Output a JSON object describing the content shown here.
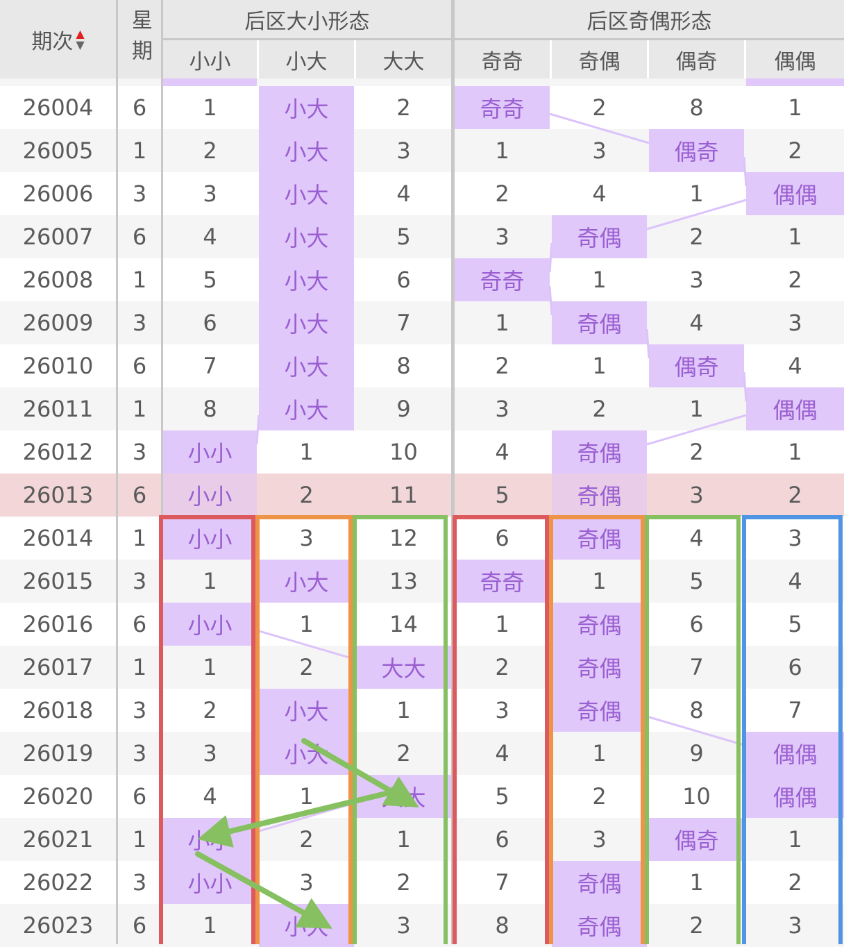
{
  "header": {
    "issue": "期次",
    "weekday": "星期",
    "size_group": "后区大小形态",
    "parity_group": "后区奇偶形态",
    "columns": [
      "小小",
      "小大",
      "大大",
      "奇奇",
      "奇偶",
      "偶奇",
      "偶偶"
    ],
    "sort_icon": "sort-up-down-icon"
  },
  "colors": {
    "highlight_bg": "#e1c8fb",
    "highlight_text": "#9a5fd0",
    "selected_row": "#f2d6d8",
    "red": "#dc5a5e",
    "orange": "#ee9448",
    "green": "#86c060",
    "blue": "#4f95e3"
  },
  "rows": [
    {
      "issue": "26004",
      "day": "6",
      "cells": [
        "1",
        "小大",
        "2",
        "奇奇",
        "2",
        "8",
        "1"
      ]
    },
    {
      "issue": "26005",
      "day": "1",
      "cells": [
        "2",
        "小大",
        "3",
        "1",
        "3",
        "偶奇",
        "2"
      ]
    },
    {
      "issue": "26006",
      "day": "3",
      "cells": [
        "3",
        "小大",
        "4",
        "2",
        "4",
        "1",
        "偶偶"
      ]
    },
    {
      "issue": "26007",
      "day": "6",
      "cells": [
        "4",
        "小大",
        "5",
        "3",
        "奇偶",
        "2",
        "1"
      ]
    },
    {
      "issue": "26008",
      "day": "1",
      "cells": [
        "5",
        "小大",
        "6",
        "奇奇",
        "1",
        "3",
        "2"
      ]
    },
    {
      "issue": "26009",
      "day": "3",
      "cells": [
        "6",
        "小大",
        "7",
        "1",
        "奇偶",
        "4",
        "3"
      ]
    },
    {
      "issue": "26010",
      "day": "6",
      "cells": [
        "7",
        "小大",
        "8",
        "2",
        "1",
        "偶奇",
        "4"
      ]
    },
    {
      "issue": "26011",
      "day": "1",
      "cells": [
        "8",
        "小大",
        "9",
        "3",
        "2",
        "1",
        "偶偶"
      ]
    },
    {
      "issue": "26012",
      "day": "3",
      "cells": [
        "小小",
        "1",
        "10",
        "4",
        "奇偶",
        "2",
        "1"
      ]
    },
    {
      "issue": "26013",
      "day": "6",
      "cells": [
        "小小",
        "2",
        "11",
        "5",
        "奇偶",
        "3",
        "2"
      ],
      "selected": true
    },
    {
      "issue": "26014",
      "day": "1",
      "cells": [
        "小小",
        "3",
        "12",
        "6",
        "奇偶",
        "4",
        "3"
      ]
    },
    {
      "issue": "26015",
      "day": "3",
      "cells": [
        "1",
        "小大",
        "13",
        "奇奇",
        "1",
        "5",
        "4"
      ]
    },
    {
      "issue": "26016",
      "day": "6",
      "cells": [
        "小小",
        "1",
        "14",
        "1",
        "奇偶",
        "6",
        "5"
      ]
    },
    {
      "issue": "26017",
      "day": "1",
      "cells": [
        "1",
        "2",
        "大大",
        "2",
        "奇偶",
        "7",
        "6"
      ]
    },
    {
      "issue": "26018",
      "day": "3",
      "cells": [
        "2",
        "小大",
        "1",
        "3",
        "奇偶",
        "8",
        "7"
      ]
    },
    {
      "issue": "26019",
      "day": "3",
      "cells": [
        "3",
        "小大",
        "2",
        "4",
        "1",
        "9",
        "偶偶"
      ]
    },
    {
      "issue": "26020",
      "day": "6",
      "cells": [
        "4",
        "1",
        "大大",
        "5",
        "2",
        "10",
        "偶偶"
      ]
    },
    {
      "issue": "26021",
      "day": "1",
      "cells": [
        "小小",
        "2",
        "1",
        "6",
        "3",
        "偶奇",
        "1"
      ]
    },
    {
      "issue": "26022",
      "day": "3",
      "cells": [
        "小小",
        "3",
        "2",
        "7",
        "奇偶",
        "1",
        "2"
      ]
    },
    {
      "issue": "26023",
      "day": "6",
      "cells": [
        "1",
        "小大",
        "3",
        "8",
        "奇偶",
        "2",
        "3"
      ]
    }
  ]
}
